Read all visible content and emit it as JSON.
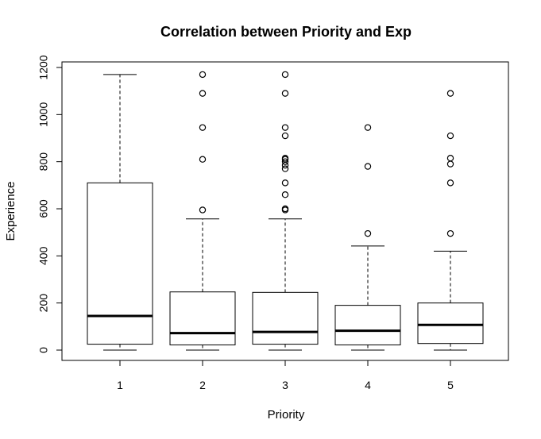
{
  "chart_data": {
    "type": "boxplot",
    "title": "Correlation between Priority and Exp",
    "xlabel": "Priority",
    "ylabel": "Experience",
    "ylim": [
      0,
      1200
    ],
    "yticks": [
      0,
      200,
      400,
      600,
      800,
      1000,
      1200
    ],
    "categories": [
      "1",
      "2",
      "3",
      "4",
      "5"
    ],
    "boxes": [
      {
        "category": "1",
        "whisker_low": 0,
        "q1": 25,
        "median": 145,
        "q3": 710,
        "whisker_high": 1170,
        "outliers": []
      },
      {
        "category": "2",
        "whisker_low": 0,
        "q1": 22,
        "median": 72,
        "q3": 247,
        "whisker_high": 557,
        "outliers": [
          595,
          810,
          945,
          1090,
          1170
        ]
      },
      {
        "category": "3",
        "whisker_low": 0,
        "q1": 25,
        "median": 77,
        "q3": 245,
        "whisker_high": 557,
        "outliers": [
          595,
          600,
          660,
          710,
          770,
          785,
          800,
          810,
          815,
          910,
          945,
          1090,
          1170
        ]
      },
      {
        "category": "4",
        "whisker_low": 0,
        "q1": 22,
        "median": 82,
        "q3": 190,
        "whisker_high": 442,
        "outliers": [
          495,
          780,
          945
        ]
      },
      {
        "category": "5",
        "whisker_low": 0,
        "q1": 28,
        "median": 107,
        "q3": 200,
        "whisker_high": 420,
        "outliers": [
          495,
          710,
          790,
          815,
          910,
          1090
        ]
      }
    ],
    "grid": false,
    "legend": "none"
  }
}
